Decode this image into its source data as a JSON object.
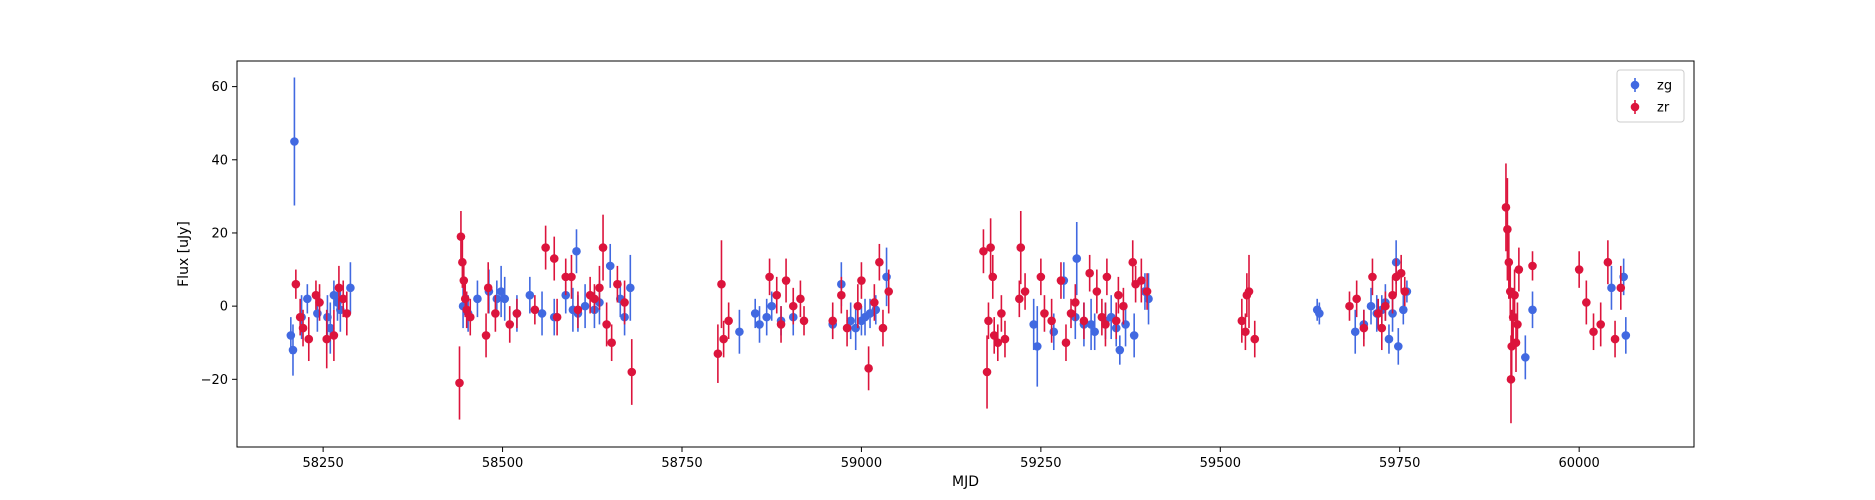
{
  "chart_data": {
    "type": "scatter",
    "xlabel": "MJD",
    "ylabel": "Flux [uJy]",
    "xlim": [
      58130,
      60160
    ],
    "ylim": [
      -38.5,
      67
    ],
    "x_ticks": [
      58250,
      58500,
      58750,
      59000,
      59250,
      59500,
      59750,
      60000
    ],
    "y_ticks": [
      -20,
      0,
      20,
      40,
      60
    ],
    "grid": false,
    "legend_position": "upper right",
    "error_bars": true,
    "series": [
      {
        "name": "zg",
        "color": "#4169E1",
        "points": [
          [
            58205,
            -8,
            5
          ],
          [
            58208,
            -12,
            7
          ],
          [
            58210,
            45,
            17.5
          ],
          [
            58220,
            -3,
            6
          ],
          [
            58228,
            2,
            4
          ],
          [
            58242,
            -2,
            5
          ],
          [
            58256,
            -3,
            6
          ],
          [
            58260,
            -6,
            7
          ],
          [
            58265,
            3,
            4
          ],
          [
            58270,
            1,
            5
          ],
          [
            58274,
            -1,
            6
          ],
          [
            58288,
            5,
            7
          ],
          [
            58445,
            0,
            6
          ],
          [
            58452,
            -2,
            5
          ],
          [
            58465,
            2,
            5
          ],
          [
            58481,
            4,
            6
          ],
          [
            58492,
            2,
            5
          ],
          [
            58498,
            4,
            7
          ],
          [
            58503,
            2,
            6
          ],
          [
            58520,
            -2,
            5
          ],
          [
            58538,
            3,
            5
          ],
          [
            58555,
            -2,
            6
          ],
          [
            58572,
            -3,
            5
          ],
          [
            58588,
            3,
            5
          ],
          [
            58598,
            -1,
            6
          ],
          [
            58603,
            15,
            6
          ],
          [
            58605,
            -2,
            5
          ],
          [
            58615,
            0,
            6
          ],
          [
            58628,
            -1,
            5
          ],
          [
            58635,
            1,
            6
          ],
          [
            58650,
            11,
            6
          ],
          [
            58664,
            2,
            5
          ],
          [
            58670,
            -3,
            5
          ],
          [
            58678,
            5,
            9
          ],
          [
            58830,
            -7,
            6
          ],
          [
            58852,
            -2,
            4
          ],
          [
            58858,
            -5,
            5
          ],
          [
            58868,
            -3,
            5
          ],
          [
            58875,
            0,
            4
          ],
          [
            58888,
            -4,
            4
          ],
          [
            58905,
            -3,
            5
          ],
          [
            58960,
            -5,
            4
          ],
          [
            58972,
            6,
            6
          ],
          [
            58985,
            -4,
            5
          ],
          [
            58992,
            -6,
            6
          ],
          [
            59000,
            -4,
            4
          ],
          [
            59005,
            -3,
            5
          ],
          [
            59012,
            -2,
            4
          ],
          [
            59020,
            -1,
            4
          ],
          [
            59035,
            8,
            8
          ],
          [
            59240,
            -5,
            7
          ],
          [
            59245,
            -11,
            11
          ],
          [
            59268,
            -7,
            5
          ],
          [
            59282,
            7,
            5
          ],
          [
            59298,
            -3,
            6
          ],
          [
            59300,
            13,
            10
          ],
          [
            59310,
            -5,
            6
          ],
          [
            59320,
            -5,
            7
          ],
          [
            59325,
            -7,
            5
          ],
          [
            59340,
            -4,
            5
          ],
          [
            59348,
            -3,
            6
          ],
          [
            59355,
            -6,
            5
          ],
          [
            59360,
            -12,
            4
          ],
          [
            59368,
            -5,
            6
          ],
          [
            59380,
            -8,
            6
          ],
          [
            59395,
            4,
            5
          ],
          [
            59400,
            2,
            7
          ],
          [
            59635,
            -1,
            3
          ],
          [
            59638,
            -2,
            3
          ],
          [
            59688,
            -7,
            6
          ],
          [
            59700,
            -5,
            4
          ],
          [
            59710,
            0,
            5
          ],
          [
            59718,
            -2,
            5
          ],
          [
            59725,
            -1,
            4
          ],
          [
            59730,
            1,
            5
          ],
          [
            59735,
            -9,
            4
          ],
          [
            59740,
            -2,
            5
          ],
          [
            59745,
            12,
            6
          ],
          [
            59748,
            -11,
            5
          ],
          [
            59755,
            -1,
            4
          ],
          [
            59760,
            4,
            3
          ],
          [
            59925,
            -14,
            6
          ],
          [
            59935,
            -1,
            5
          ],
          [
            60045,
            5,
            6
          ],
          [
            60062,
            8,
            5
          ],
          [
            60065,
            -8,
            5
          ]
        ]
      },
      {
        "name": "zr",
        "color": "#DC143C",
        "points": [
          [
            58212,
            6,
            4
          ],
          [
            58218,
            -3,
            5
          ],
          [
            58222,
            -6,
            5
          ],
          [
            58230,
            -9,
            6
          ],
          [
            58240,
            3,
            4
          ],
          [
            58245,
            1,
            5
          ],
          [
            58255,
            -9,
            8
          ],
          [
            58265,
            -8,
            7
          ],
          [
            58272,
            5,
            6
          ],
          [
            58278,
            2,
            5
          ],
          [
            58283,
            -2,
            6
          ],
          [
            58440,
            -21,
            10
          ],
          [
            58442,
            19,
            7
          ],
          [
            58444,
            12,
            7
          ],
          [
            58446,
            7,
            6
          ],
          [
            58448,
            2,
            5
          ],
          [
            58450,
            -1,
            5
          ],
          [
            58455,
            -3,
            5
          ],
          [
            58477,
            -8,
            6
          ],
          [
            58480,
            5,
            7
          ],
          [
            58490,
            -2,
            5
          ],
          [
            58510,
            -5,
            5
          ],
          [
            58520,
            -2,
            4
          ],
          [
            58545,
            -1,
            4
          ],
          [
            58560,
            16,
            6
          ],
          [
            58572,
            13,
            6
          ],
          [
            58576,
            -3,
            5
          ],
          [
            58588,
            8,
            5
          ],
          [
            58596,
            8,
            6
          ],
          [
            58605,
            -1,
            5
          ],
          [
            58622,
            3,
            5
          ],
          [
            58628,
            2,
            4
          ],
          [
            58635,
            5,
            6
          ],
          [
            58640,
            16,
            9
          ],
          [
            58645,
            -5,
            6
          ],
          [
            58652,
            -10,
            5
          ],
          [
            58660,
            6,
            5
          ],
          [
            58670,
            1,
            6
          ],
          [
            58680,
            -18,
            9
          ],
          [
            58800,
            -13,
            8
          ],
          [
            58805,
            6,
            12
          ],
          [
            58808,
            -9,
            5
          ],
          [
            58815,
            -4,
            5
          ],
          [
            58872,
            8,
            5
          ],
          [
            58882,
            3,
            5
          ],
          [
            58888,
            -5,
            5
          ],
          [
            58895,
            7,
            6
          ],
          [
            58905,
            0,
            5
          ],
          [
            58915,
            2,
            5
          ],
          [
            58920,
            -4,
            4
          ],
          [
            58960,
            -4,
            5
          ],
          [
            58972,
            3,
            5
          ],
          [
            58980,
            -6,
            5
          ],
          [
            58995,
            0,
            6
          ],
          [
            59000,
            7,
            5
          ],
          [
            59010,
            -17,
            6
          ],
          [
            59018,
            1,
            5
          ],
          [
            59025,
            12,
            5
          ],
          [
            59030,
            -6,
            5
          ],
          [
            59038,
            4,
            6
          ],
          [
            59170,
            15,
            6
          ],
          [
            59175,
            -18,
            10
          ],
          [
            59177,
            -4,
            5
          ],
          [
            59180,
            16,
            8
          ],
          [
            59183,
            8,
            6
          ],
          [
            59185,
            -8,
            5
          ],
          [
            59190,
            -10,
            5
          ],
          [
            59195,
            -2,
            5
          ],
          [
            59200,
            -9,
            5
          ],
          [
            59220,
            2,
            5
          ],
          [
            59222,
            16,
            10
          ],
          [
            59228,
            4,
            5
          ],
          [
            59250,
            8,
            5
          ],
          [
            59255,
            -2,
            5
          ],
          [
            59265,
            -4,
            6
          ],
          [
            59278,
            7,
            5
          ],
          [
            59285,
            -10,
            5
          ],
          [
            59292,
            -2,
            4
          ],
          [
            59298,
            1,
            5
          ],
          [
            59310,
            -4,
            5
          ],
          [
            59318,
            9,
            5
          ],
          [
            59328,
            4,
            6
          ],
          [
            59335,
            -3,
            5
          ],
          [
            59340,
            -5,
            6
          ],
          [
            59342,
            8,
            5
          ],
          [
            59355,
            -4,
            5
          ],
          [
            59358,
            3,
            5
          ],
          [
            59365,
            0,
            5
          ],
          [
            59378,
            12,
            6
          ],
          [
            59382,
            6,
            5
          ],
          [
            59390,
            7,
            6
          ],
          [
            59398,
            4,
            5
          ],
          [
            59530,
            -4,
            6
          ],
          [
            59535,
            -7,
            5
          ],
          [
            59537,
            3,
            6
          ],
          [
            59540,
            4,
            10
          ],
          [
            59548,
            -9,
            5
          ],
          [
            59680,
            0,
            4
          ],
          [
            59690,
            2,
            5
          ],
          [
            59700,
            -6,
            5
          ],
          [
            59712,
            8,
            5
          ],
          [
            59720,
            -2,
            4
          ],
          [
            59725,
            -6,
            6
          ],
          [
            59730,
            0,
            4
          ],
          [
            59740,
            3,
            5
          ],
          [
            59745,
            8,
            5
          ],
          [
            59752,
            9,
            5
          ],
          [
            59757,
            4,
            4
          ],
          [
            59898,
            27,
            12
          ],
          [
            59900,
            21,
            14
          ],
          [
            59902,
            12,
            10
          ],
          [
            59904,
            4,
            8
          ],
          [
            59905,
            -20,
            12
          ],
          [
            59906,
            -11,
            10
          ],
          [
            59908,
            -3,
            8
          ],
          [
            59910,
            3,
            7
          ],
          [
            59912,
            -10,
            8
          ],
          [
            59914,
            -5,
            6
          ],
          [
            59916,
            10,
            6
          ],
          [
            59935,
            11,
            4
          ],
          [
            60000,
            10,
            5
          ],
          [
            60010,
            1,
            6
          ],
          [
            60020,
            -7,
            5
          ],
          [
            60030,
            -5,
            6
          ],
          [
            60040,
            12,
            6
          ],
          [
            60050,
            -9,
            5
          ],
          [
            60058,
            5,
            6
          ]
        ]
      }
    ]
  }
}
